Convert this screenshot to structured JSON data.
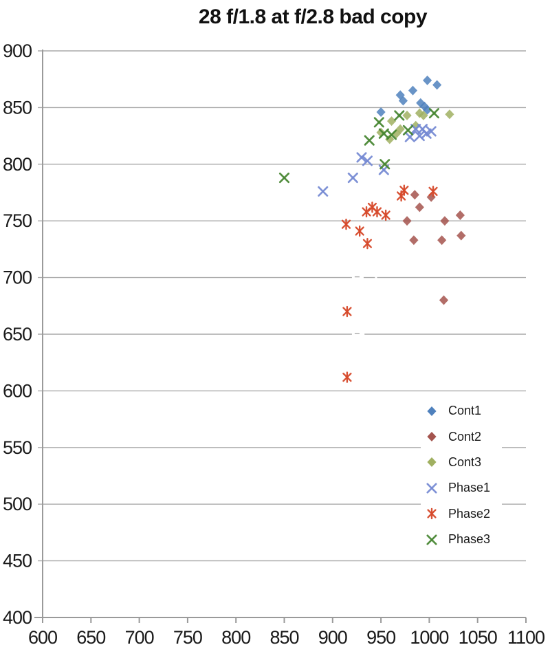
{
  "chart_data": {
    "type": "scatter",
    "title": "28 f/1.8 at f/2.8 bad copy",
    "xlabel": "",
    "ylabel": "",
    "xlim": [
      600,
      1100
    ],
    "ylim": [
      400,
      900
    ],
    "xtick_step": 50,
    "ytick_step": 50,
    "grid": "horizontal-only",
    "legend_position": "middle-right",
    "axis_color": "#9a9a9a",
    "grid_color": "#a9a9a9",
    "text_color": "#1a1a1a",
    "gridline_breaks": [
      {
        "y": 700,
        "x_from": 920,
        "x_to": 946
      },
      {
        "y": 650,
        "x_from": 920,
        "x_to": 933
      }
    ],
    "series": [
      {
        "name": "Cont1",
        "marker": "diamond",
        "color": "#4F81BD",
        "points": [
          [
            998,
            874
          ],
          [
            1008,
            870
          ],
          [
            983,
            865
          ],
          [
            970,
            861
          ],
          [
            973,
            856
          ],
          [
            991,
            854
          ],
          [
            995,
            851
          ],
          [
            998,
            848
          ],
          [
            950,
            846
          ]
        ]
      },
      {
        "name": "Cont2",
        "marker": "diamond",
        "color": "#A4544E",
        "points": [
          [
            985,
            773
          ],
          [
            1002,
            771
          ],
          [
            990,
            762
          ],
          [
            977,
            750
          ],
          [
            1016,
            750
          ],
          [
            1032,
            755
          ],
          [
            984,
            733
          ],
          [
            1013,
            733
          ],
          [
            1033,
            737
          ],
          [
            1015,
            680
          ]
        ]
      },
      {
        "name": "Cont3",
        "marker": "diamond",
        "color": "#A0B061",
        "points": [
          [
            950,
            828
          ],
          [
            959,
            822
          ],
          [
            961,
            838
          ],
          [
            966,
            827
          ],
          [
            970,
            831
          ],
          [
            977,
            843
          ],
          [
            986,
            834
          ],
          [
            990,
            845
          ],
          [
            994,
            843
          ],
          [
            1021,
            844
          ]
        ]
      },
      {
        "name": "Phase1",
        "marker": "x",
        "color": "#7489D3",
        "points": [
          [
            890,
            776
          ],
          [
            921,
            788
          ],
          [
            930,
            806
          ],
          [
            936,
            803
          ],
          [
            953,
            795
          ],
          [
            980,
            824
          ],
          [
            986,
            831
          ],
          [
            990,
            825
          ],
          [
            993,
            831
          ],
          [
            997,
            827
          ],
          [
            1002,
            829
          ]
        ]
      },
      {
        "name": "Phase2",
        "marker": "star",
        "color": "#D6492A",
        "points": [
          [
            915,
            612
          ],
          [
            915,
            670
          ],
          [
            936,
            730
          ],
          [
            928,
            741
          ],
          [
            914,
            747
          ],
          [
            935,
            758
          ],
          [
            946,
            758
          ],
          [
            941,
            762
          ],
          [
            955,
            755
          ],
          [
            971,
            772
          ],
          [
            974,
            777
          ],
          [
            1004,
            776
          ]
        ]
      },
      {
        "name": "Phase3",
        "marker": "x",
        "color": "#44842F",
        "points": [
          [
            850,
            788
          ],
          [
            954,
            800
          ],
          [
            938,
            821
          ],
          [
            948,
            837
          ],
          [
            953,
            827
          ],
          [
            961,
            826
          ],
          [
            969,
            843
          ],
          [
            978,
            830
          ],
          [
            1005,
            845
          ]
        ]
      }
    ]
  }
}
